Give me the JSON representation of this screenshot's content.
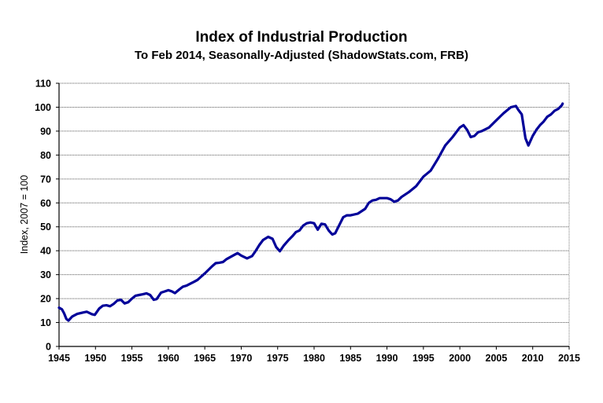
{
  "chart_data": {
    "type": "line",
    "title": "Index of Industrial Production",
    "subtitle": "To Feb 2014, Seasonally-Adjusted (ShadowStats.com, FRB)",
    "xlabel": "",
    "ylabel": "Index, 2007 = 100",
    "xlim": [
      1945,
      2015
    ],
    "ylim": [
      0,
      110
    ],
    "xticks": [
      "1945",
      "1950",
      "1955",
      "1960",
      "1965",
      "1970",
      "1975",
      "1980",
      "1985",
      "1990",
      "1995",
      "2000",
      "2005",
      "2010",
      "2015"
    ],
    "yticks": [
      "0",
      "10",
      "20",
      "30",
      "40",
      "50",
      "60",
      "70",
      "80",
      "90",
      "100",
      "110"
    ],
    "grid": "horizontal",
    "line_color": "#000099",
    "series": [
      {
        "name": "Industrial Production Index",
        "x": [
          1945.0,
          1945.4,
          1945.7,
          1946.0,
          1946.3,
          1946.8,
          1947.5,
          1948.3,
          1948.8,
          1949.5,
          1949.9,
          1950.5,
          1951.0,
          1951.5,
          1952.0,
          1952.5,
          1953.0,
          1953.5,
          1954.0,
          1954.5,
          1955.0,
          1955.5,
          1956.0,
          1956.5,
          1957.0,
          1957.5,
          1958.0,
          1958.4,
          1959.0,
          1959.5,
          1960.0,
          1960.5,
          1960.9,
          1961.5,
          1962.0,
          1962.5,
          1963.0,
          1963.5,
          1964.0,
          1965.0,
          1966.0,
          1966.5,
          1967.0,
          1967.5,
          1968.0,
          1969.0,
          1969.5,
          1970.0,
          1970.8,
          1971.5,
          1972.0,
          1972.5,
          1973.0,
          1973.7,
          1974.3,
          1974.8,
          1975.3,
          1975.8,
          1976.5,
          1977.0,
          1977.5,
          1978.0,
          1978.5,
          1979.0,
          1979.5,
          1980.0,
          1980.5,
          1981.0,
          1981.5,
          1982.0,
          1982.5,
          1982.9,
          1983.5,
          1984.0,
          1984.5,
          1985.0,
          1986.0,
          1987.0,
          1987.5,
          1988.0,
          1988.5,
          1989.0,
          1989.5,
          1990.0,
          1990.5,
          1991.0,
          1991.5,
          1992.0,
          1993.0,
          1994.0,
          1995.0,
          1996.0,
          1997.0,
          1998.0,
          1999.0,
          2000.0,
          2000.5,
          2001.0,
          2001.5,
          2002.0,
          2002.5,
          2003.0,
          2004.0,
          2005.0,
          2006.0,
          2007.0,
          2007.7,
          2008.0,
          2008.5,
          2009.0,
          2009.4,
          2010.0,
          2010.5,
          2011.0,
          2011.5,
          2012.0,
          2012.5,
          2013.0,
          2013.5,
          2014.0,
          2014.1
        ],
        "values": [
          16.2,
          15.5,
          13.8,
          11.5,
          10.8,
          12.5,
          13.6,
          14.2,
          14.5,
          13.5,
          13.2,
          15.8,
          17.0,
          17.2,
          16.8,
          17.8,
          19.2,
          19.5,
          18.0,
          18.5,
          20.0,
          21.2,
          21.5,
          21.8,
          22.2,
          21.5,
          19.5,
          19.8,
          22.5,
          23.0,
          23.5,
          23.0,
          22.3,
          23.8,
          25.0,
          25.4,
          26.2,
          27.0,
          27.8,
          30.5,
          33.5,
          34.8,
          35.0,
          35.3,
          36.5,
          38.2,
          39.0,
          38.0,
          36.8,
          37.8,
          40.0,
          42.5,
          44.5,
          45.8,
          45.0,
          41.5,
          39.8,
          42.0,
          44.5,
          46.0,
          47.8,
          48.5,
          50.5,
          51.5,
          51.8,
          51.5,
          48.8,
          51.3,
          51.0,
          48.5,
          46.8,
          47.3,
          51.0,
          54.0,
          54.8,
          54.8,
          55.5,
          57.5,
          60.0,
          61.0,
          61.3,
          62.0,
          62.0,
          62.0,
          61.5,
          60.5,
          61.0,
          62.5,
          64.5,
          67.0,
          71.0,
          73.5,
          78.5,
          84.0,
          87.5,
          91.5,
          92.5,
          90.5,
          87.5,
          88.0,
          89.5,
          90.0,
          91.5,
          94.5,
          97.5,
          100.0,
          100.5,
          99.0,
          97.0,
          87.0,
          84.0,
          88.0,
          90.5,
          92.5,
          94.0,
          96.0,
          97.0,
          98.5,
          99.3,
          100.8,
          101.5
        ]
      }
    ]
  }
}
